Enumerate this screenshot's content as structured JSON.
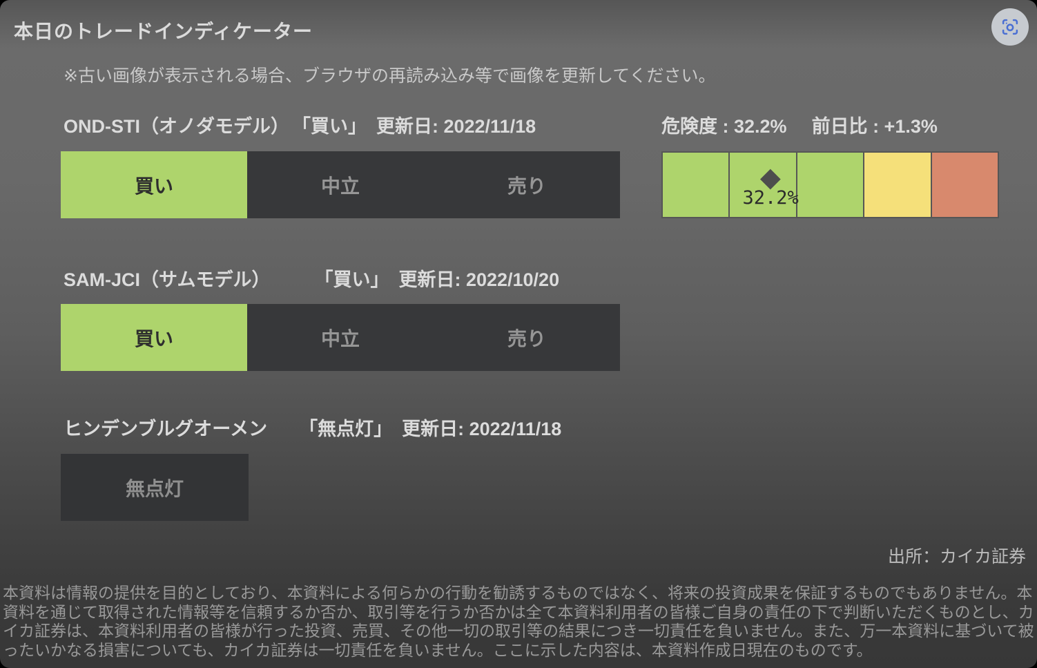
{
  "page": {
    "title": "本日のトレードインディケーター",
    "note": "※古い画像が表示される場合、ブラウザの再読み込み等で画像を更新してください。",
    "source": "出所：カイカ証券",
    "disclaimer": "本資料は情報の提供を目的としており、本資料による何らかの行動を勧誘するものではなく、将来の投資成果を保証するものでもありません。本資料を通じて取得された情報等を信頼するか否か、取引等を行うか否かは全て本資料利用者の皆様ご自身の責任の下で判断いただくものとし、カイカ証券は、本資料利用者の皆様が行った投資、売買、その他一切の取引等の結果につき一切責任を負いません。また、万一本資料に基づいて被ったいかなる損害についても、カイカ証券は一切責任を負いません。ここに示した内容は、本資料作成日現在のものです。"
  },
  "indicators": [
    {
      "name": "OND-STI（オノダモデル）",
      "signal": "「買い」",
      "updated_label": "更新日: 2022/11/18",
      "options": [
        "買い",
        "中立",
        "売り"
      ],
      "active_index": 0,
      "active_value": "買い"
    },
    {
      "name": "SAM-JCI（サムモデル）",
      "signal": "「買い」",
      "updated_label": "更新日: 2022/10/20",
      "options": [
        "買い",
        "中立",
        "売り"
      ],
      "active_index": 0,
      "active_value": "買い"
    },
    {
      "name": "ヒンデンブルグオーメン",
      "signal": "「無点灯」",
      "updated_label": "更新日: 2022/11/18",
      "options": [
        "無点灯"
      ],
      "active_index": -1,
      "active_value": "無点灯"
    }
  ],
  "risk_gauge": {
    "label": "危険度 : 32.2%",
    "change_label": "前日比 : +1.3%",
    "value_percent": 32.2,
    "change_percent": 1.3,
    "marker_label": "32.2%",
    "segment_colors": [
      "#aed46c",
      "#aed46c",
      "#aed46c",
      "#f5e07a",
      "#d8896d"
    ]
  },
  "icons": {
    "screenshot_button": "screenshot-capture-icon"
  },
  "colors": {
    "buy_active_green": "#aed46c",
    "inactive_dark": "#37383a",
    "gauge_yellow": "#f5e07a",
    "gauge_orange": "#d8896d",
    "gauge_border": "#565656",
    "marker_diamond": "#4d4d4d",
    "icon_blue": "#4a6fd3"
  }
}
